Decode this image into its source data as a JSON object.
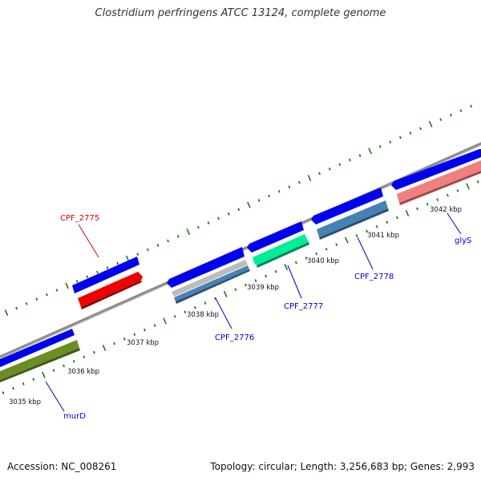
{
  "title": "Clostridium perfringens ATCC 13124, complete genome",
  "footer": {
    "accession": "Accession: NC_008261",
    "topology": "Topology: circular; Length: 3,256,683 bp; Genes: 2,993"
  },
  "colors": {
    "backbone": "#8c8c8c",
    "tick": "#1a7a1a",
    "cds_forward": "#0000ee",
    "label_blue": "#0000cc",
    "label_red": "#dd0000"
  },
  "scale_labels": [
    {
      "text": "3035 kbp"
    },
    {
      "text": "3036 kbp"
    },
    {
      "text": "3037 kbp"
    },
    {
      "text": "3038 kbp"
    },
    {
      "text": "3039 kbp"
    },
    {
      "text": "3040 kbp"
    },
    {
      "text": "3041 kbp"
    },
    {
      "text": "3042 kbp"
    }
  ],
  "gene_labels": [
    {
      "text": "murD",
      "color": "#0000cc"
    },
    {
      "text": "CPF_2775",
      "color": "#dd0000"
    },
    {
      "text": "CPF_2776",
      "color": "#0000cc"
    },
    {
      "text": "CPF_2777",
      "color": "#0000cc"
    },
    {
      "text": "CPF_2778",
      "color": "#0000cc"
    },
    {
      "text": "glyS",
      "color": "#0000cc"
    }
  ],
  "features": [
    {
      "name": "cds-forward",
      "color": "#0000ee"
    },
    {
      "name": "murD",
      "color": "#6b8e23"
    },
    {
      "name": "CPF_2775",
      "color": "#ee0000"
    },
    {
      "name": "CPF_2776",
      "color": "#4682b4"
    },
    {
      "name": "CPF_2777",
      "color": "#00ee99"
    },
    {
      "name": "CPF_2778",
      "color": "#4682b4"
    },
    {
      "name": "glyS",
      "color": "#f08080"
    }
  ]
}
